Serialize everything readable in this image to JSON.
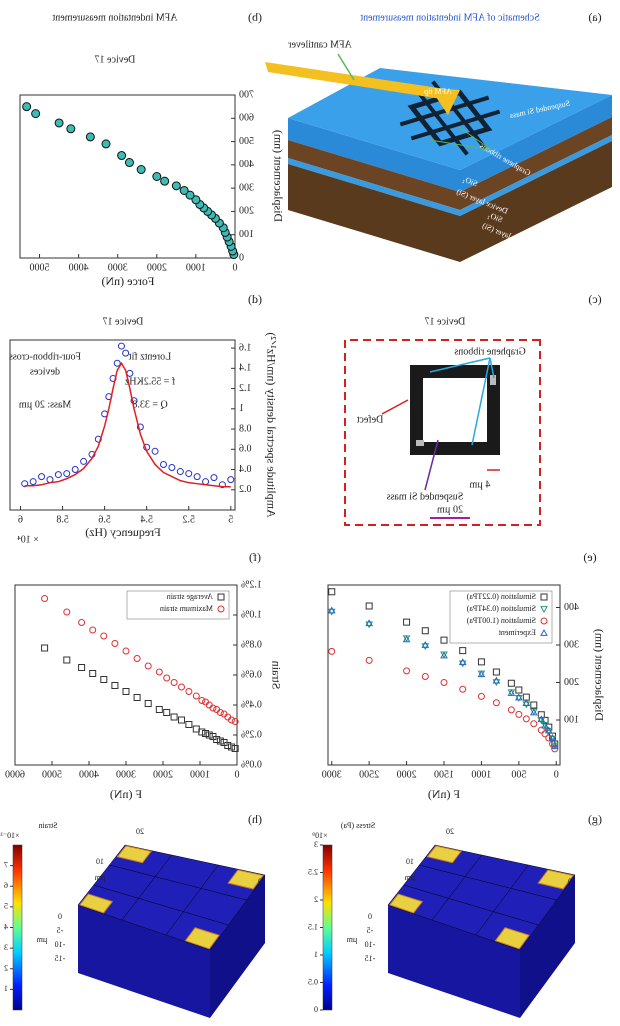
{
  "panels": {
    "a": {
      "label": "(a)",
      "title": "Schematic of AFM indentation measurement",
      "cantilever": "AFM cantilever",
      "tip": "AFM tip",
      "mass": "Suspended Si mass",
      "ribbons": "Graphene ribbons",
      "layers": [
        "SiO₂",
        "Device layer (Si)",
        "SiO₂",
        "Handle layer (Si)"
      ]
    },
    "c": {
      "label": "(c)",
      "title": "Device 17",
      "ribbons": "Graphene ribbons",
      "defect": "Defect",
      "mass": "Suspended Si mass",
      "gap": "4 µm",
      "scale": "20 µm"
    },
    "g": {
      "label": "(g)",
      "colorbar_title": "Stress (Pa)",
      "multiplier": "×10⁹",
      "clim": [
        0,
        3
      ],
      "cticks": [
        0,
        0.5,
        1,
        1.5,
        2,
        2.5,
        3
      ],
      "axis_labels": [
        "0",
        "-5",
        "-10",
        "-15",
        "µm",
        "10",
        "20",
        "µm",
        "0"
      ]
    },
    "h": {
      "label": "(h)",
      "colorbar_title": "Strain",
      "multiplier": "×10⁻³",
      "clim": [
        0,
        8
      ],
      "cticks": [
        1,
        2,
        3,
        4,
        5,
        6,
        7
      ],
      "axis_labels": [
        "0",
        "-5",
        "-10",
        "-15",
        "µm",
        "10",
        "20",
        "µm",
        "0"
      ]
    }
  },
  "chart_data": [
    {
      "type": "scatter",
      "label": "(b)",
      "title": "AFM indentation measurement",
      "subtitle": "Device 17",
      "x_label": "Force (nN)",
      "y_label": "Displacement (nm)",
      "xlim": [
        0,
        5500
      ],
      "xticks": [
        0,
        1000,
        2000,
        3000,
        4000,
        5000
      ],
      "ylim": [
        0,
        700
      ],
      "yticks": [
        0,
        100,
        200,
        300,
        400,
        500,
        600,
        700
      ],
      "series": [
        {
          "color": "#3cbcb4",
          "marker": "circle",
          "filled": true,
          "x": [
            30,
            60,
            100,
            150,
            200,
            250,
            300,
            400,
            500,
            600,
            700,
            800,
            900,
            1000,
            1150,
            1300,
            1500,
            1800,
            2000,
            2400,
            2700,
            2900,
            3300,
            3700,
            4200,
            4500,
            5100,
            5330
          ],
          "values": [
            15,
            30,
            50,
            70,
            90,
            110,
            130,
            150,
            170,
            185,
            200,
            215,
            230,
            250,
            270,
            290,
            310,
            330,
            350,
            380,
            410,
            440,
            490,
            520,
            555,
            580,
            620,
            650
          ]
        }
      ]
    },
    {
      "type": "scatter",
      "label": "(d)",
      "title": "Device 17",
      "x_label": "Frequency (Hz)",
      "y_label": "Amplitude spectral density (nm/Hz¹ᐟ²)",
      "annotations": [
        "Lorentz fit",
        "f = 55.2KHz",
        "Q = 33.8",
        "Four-ribbon-cross",
        "devices",
        "Mass: 20 µm",
        "× 10⁴"
      ],
      "xlim": [
        4.98,
        6.05
      ],
      "xticks": [
        5,
        5.2,
        5.4,
        5.6,
        5.8,
        6
      ],
      "ylim": [
        0,
        1.68
      ],
      "yticks": [
        0.2,
        0.4,
        0.6,
        0.8,
        1,
        1.2,
        1.4,
        1.6
      ],
      "series": [
        {
          "color": "#2233cc",
          "marker": "circle",
          "x": [
            5.0,
            5.04,
            5.08,
            5.12,
            5.16,
            5.2,
            5.24,
            5.28,
            5.32,
            5.36,
            5.4,
            5.43,
            5.46,
            5.48,
            5.5,
            5.52,
            5.54,
            5.56,
            5.58,
            5.6,
            5.63,
            5.66,
            5.7,
            5.74,
            5.78,
            5.82,
            5.86,
            5.9,
            5.94,
            5.98
          ],
          "values": [
            0.3,
            0.25,
            0.32,
            0.28,
            0.33,
            0.36,
            0.38,
            0.42,
            0.45,
            0.58,
            0.62,
            0.82,
            1.08,
            1.35,
            1.55,
            1.62,
            1.45,
            1.3,
            1.12,
            0.95,
            0.7,
            0.55,
            0.48,
            0.4,
            0.36,
            0.35,
            0.3,
            0.33,
            0.28,
            0.26
          ]
        },
        {
          "color": "#e02020",
          "marker": "line",
          "x": [
            5.0,
            5.04,
            5.08,
            5.12,
            5.16,
            5.2,
            5.24,
            5.28,
            5.32,
            5.36,
            5.4,
            5.43,
            5.46,
            5.48,
            5.5,
            5.52,
            5.54,
            5.56,
            5.58,
            5.6,
            5.63,
            5.66,
            5.7,
            5.74,
            5.78,
            5.82,
            5.86,
            5.9,
            5.94,
            5.98
          ],
          "values": [
            0.23,
            0.23,
            0.24,
            0.25,
            0.26,
            0.27,
            0.29,
            0.33,
            0.37,
            0.45,
            0.58,
            0.75,
            1.0,
            1.2,
            1.38,
            1.45,
            1.38,
            1.2,
            1.0,
            0.83,
            0.63,
            0.51,
            0.41,
            0.35,
            0.31,
            0.28,
            0.27,
            0.25,
            0.24,
            0.24
          ]
        }
      ]
    },
    {
      "type": "scatter",
      "label": "(e)",
      "x_label": "F (nN)",
      "y_label": "Displacement (nm)",
      "legend": "upper left",
      "xlim": [
        -50,
        3050
      ],
      "xticks": [
        0,
        500,
        1000,
        1500,
        2000,
        2500,
        3000
      ],
      "ylim": [
        -20,
        460
      ],
      "yticks": [
        100,
        200,
        300,
        400
      ],
      "x": [
        20,
        50,
        100,
        150,
        200,
        300,
        400,
        500,
        600,
        800,
        1000,
        1250,
        1500,
        1750,
        2000,
        2500,
        3000
      ],
      "series": [
        {
          "name": "Simulation (0.22TPa)",
          "color": "#333333",
          "marker": "square",
          "values": [
            36,
            57,
            81,
            99,
            114,
            140,
            161,
            180,
            198,
            228,
            255,
            285,
            313,
            338,
            361,
            404,
            442
          ]
        },
        {
          "name": "Simulation (0.34TPa)",
          "color": "#2a9a6a",
          "marker": "triangle-down",
          "values": [
            32,
            50,
            71,
            87,
            100,
            123,
            142,
            159,
            174,
            201,
            224,
            251,
            275,
            297,
            318,
            355,
            389
          ]
        },
        {
          "name": "Simulation (1.00TPa)",
          "color": "#e03030",
          "marker": "circle",
          "values": [
            23,
            36,
            52,
            63,
            73,
            90,
            103,
            115,
            127,
            146,
            163,
            182,
            200,
            216,
            231,
            259,
            283
          ]
        },
        {
          "name": "Experiment",
          "color": "#2266cc",
          "marker": "triangle-up",
          "values": [
            30,
            52,
            72,
            85,
            102,
            120,
            145,
            160,
            172,
            205,
            222,
            254,
            272,
            300,
            315,
            358,
            392
          ]
        }
      ]
    },
    {
      "type": "scatter",
      "label": "(f)",
      "x_label": "F (nN)",
      "y_label": "Strain",
      "legend": "upper left",
      "xlim": [
        0,
        6000
      ],
      "xticks": [
        0,
        1000,
        2000,
        3000,
        4000,
        5000,
        6000
      ],
      "ylim": [
        0,
        1.2
      ],
      "yticks": [
        {
          "value": 0,
          "label": "0.0%"
        },
        {
          "value": 0.2,
          "label": "0.2%"
        },
        {
          "value": 0.4,
          "label": "0.4%"
        },
        {
          "value": 0.6,
          "label": "0.6%"
        },
        {
          "value": 0.8,
          "label": "0.8%"
        },
        {
          "value": 1.0,
          "label": "1.0%"
        },
        {
          "value": 1.2,
          "label": "1.2%"
        }
      ],
      "x": [
        50,
        150,
        250,
        350,
        450,
        550,
        650,
        750,
        850,
        950,
        1100,
        1300,
        1500,
        1700,
        1900,
        2100,
        2400,
        2700,
        3000,
        3300,
        3600,
        3900,
        4200,
        4600,
        5200
      ],
      "series": [
        {
          "name": "Average strain",
          "color": "#333333",
          "marker": "square",
          "values": [
            0.11,
            0.12,
            0.13,
            0.15,
            0.16,
            0.17,
            0.19,
            0.2,
            0.21,
            0.22,
            0.24,
            0.27,
            0.3,
            0.32,
            0.35,
            0.37,
            0.41,
            0.45,
            0.49,
            0.53,
            0.57,
            0.61,
            0.65,
            0.7,
            0.78
          ]
        },
        {
          "name": "Maximum strain",
          "color": "#e03030",
          "marker": "circle",
          "values": [
            0.29,
            0.3,
            0.32,
            0.34,
            0.35,
            0.37,
            0.38,
            0.4,
            0.42,
            0.43,
            0.46,
            0.49,
            0.52,
            0.55,
            0.58,
            0.62,
            0.66,
            0.71,
            0.76,
            0.81,
            0.86,
            0.9,
            0.95,
            1.02,
            1.11
          ]
        }
      ]
    }
  ]
}
